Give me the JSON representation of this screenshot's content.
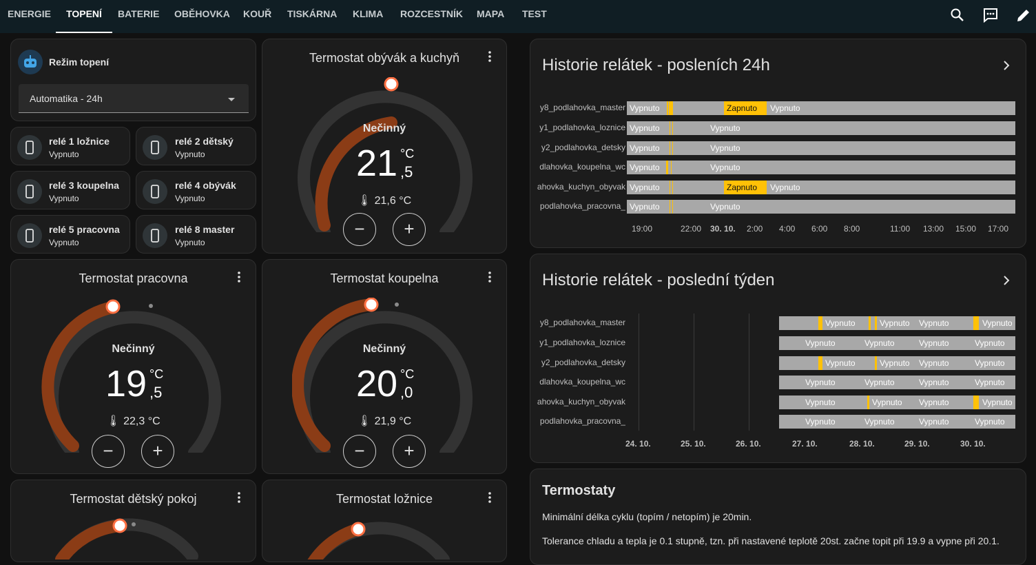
{
  "tabs": [
    "ENERGIE",
    "TOPENÍ",
    "BATERIE",
    "OBĚHOVKA",
    "KOUŘ",
    "TISKÁRNA",
    "KLIMA",
    "ROZCESTNÍK",
    "MAPA",
    "TEST"
  ],
  "active_tab": "TOPENÍ",
  "topbar_icons": [
    "search-icon",
    "assist-icon",
    "edit-icon"
  ],
  "mode": {
    "title": "Režim topení",
    "value": "Automatika - 24h",
    "icon": "robot-icon"
  },
  "relays": [
    {
      "title": "relé 1 ložnice",
      "state": "Vypnuto"
    },
    {
      "title": "relé 2 dětský",
      "state": "Vypnuto"
    },
    {
      "title": "relé 3 koupelna",
      "state": "Vypnuto"
    },
    {
      "title": "relé 4 obývák",
      "state": "Vypnuto"
    },
    {
      "title": "relé 5 pracovna",
      "state": "Vypnuto"
    },
    {
      "title": "relé 8 master",
      "state": "Vypnuto"
    }
  ],
  "thermostats": [
    {
      "title": "Termostat obývák a kuchyň",
      "state": "Nečinný",
      "int": "21",
      "dec": ",5",
      "unit": "°C",
      "current": "21,6 °C"
    },
    {
      "title": "Termostat pracovna",
      "state": "Nečinný",
      "int": "19",
      "dec": ",5",
      "unit": "°C",
      "current": "22,3 °C"
    },
    {
      "title": "Termostat koupelna",
      "state": "Nečinný",
      "int": "20",
      "dec": ",0",
      "unit": "°C",
      "current": "21,9 °C"
    },
    {
      "title": "Termostat dětský pokoj"
    },
    {
      "title": "Termostat ložnice"
    }
  ],
  "colors": {
    "accent_orange": "#8b3c16",
    "handle": "#ff7043",
    "on": "#ffc107",
    "off": "#a8a8a8",
    "topbar": "#101e24"
  },
  "history24": {
    "title": "Historie relátek - posleních 24h",
    "entities": [
      "y8_podlahovka_master",
      "y1_podlahovka_loznice",
      "y2_podlahovka_detsky",
      "dlahovka_koupelna_wc",
      "ahovka_kuchyn_obyvak",
      "_podlahovka_pracovna"
    ],
    "off": "Vypnuto",
    "on": "Zapnuto",
    "ticks": [
      "19:00",
      "22:00",
      "30. 10.",
      "2:00",
      "4:00",
      "6:00",
      "8:00",
      "11:00",
      "13:00",
      "15:00",
      "17:00"
    ]
  },
  "history7": {
    "title": "Historie relátek - poslední týden",
    "entities": [
      "y8_podlahovka_master",
      "y1_podlahovka_loznice",
      "y2_podlahovka_detsky",
      "dlahovka_koupelna_wc",
      "ahovka_kuchyn_obyvak",
      "_podlahovka_pracovna"
    ],
    "off": "Vypnuto",
    "ticks": [
      "24. 10.",
      "25. 10.",
      "26. 10.",
      "27. 10.",
      "28. 10.",
      "29. 10.",
      "30. 10."
    ]
  },
  "markdown": {
    "title": "Termostaty",
    "p1": "Minimální délka cyklu (topím / netopím) je 20min.",
    "p2": "Tolerance chladu a tepla je 0.1 stupně, tzn. při nastavené teplotě 20st. začne topit při 19.9 a vypne při 20.1."
  }
}
